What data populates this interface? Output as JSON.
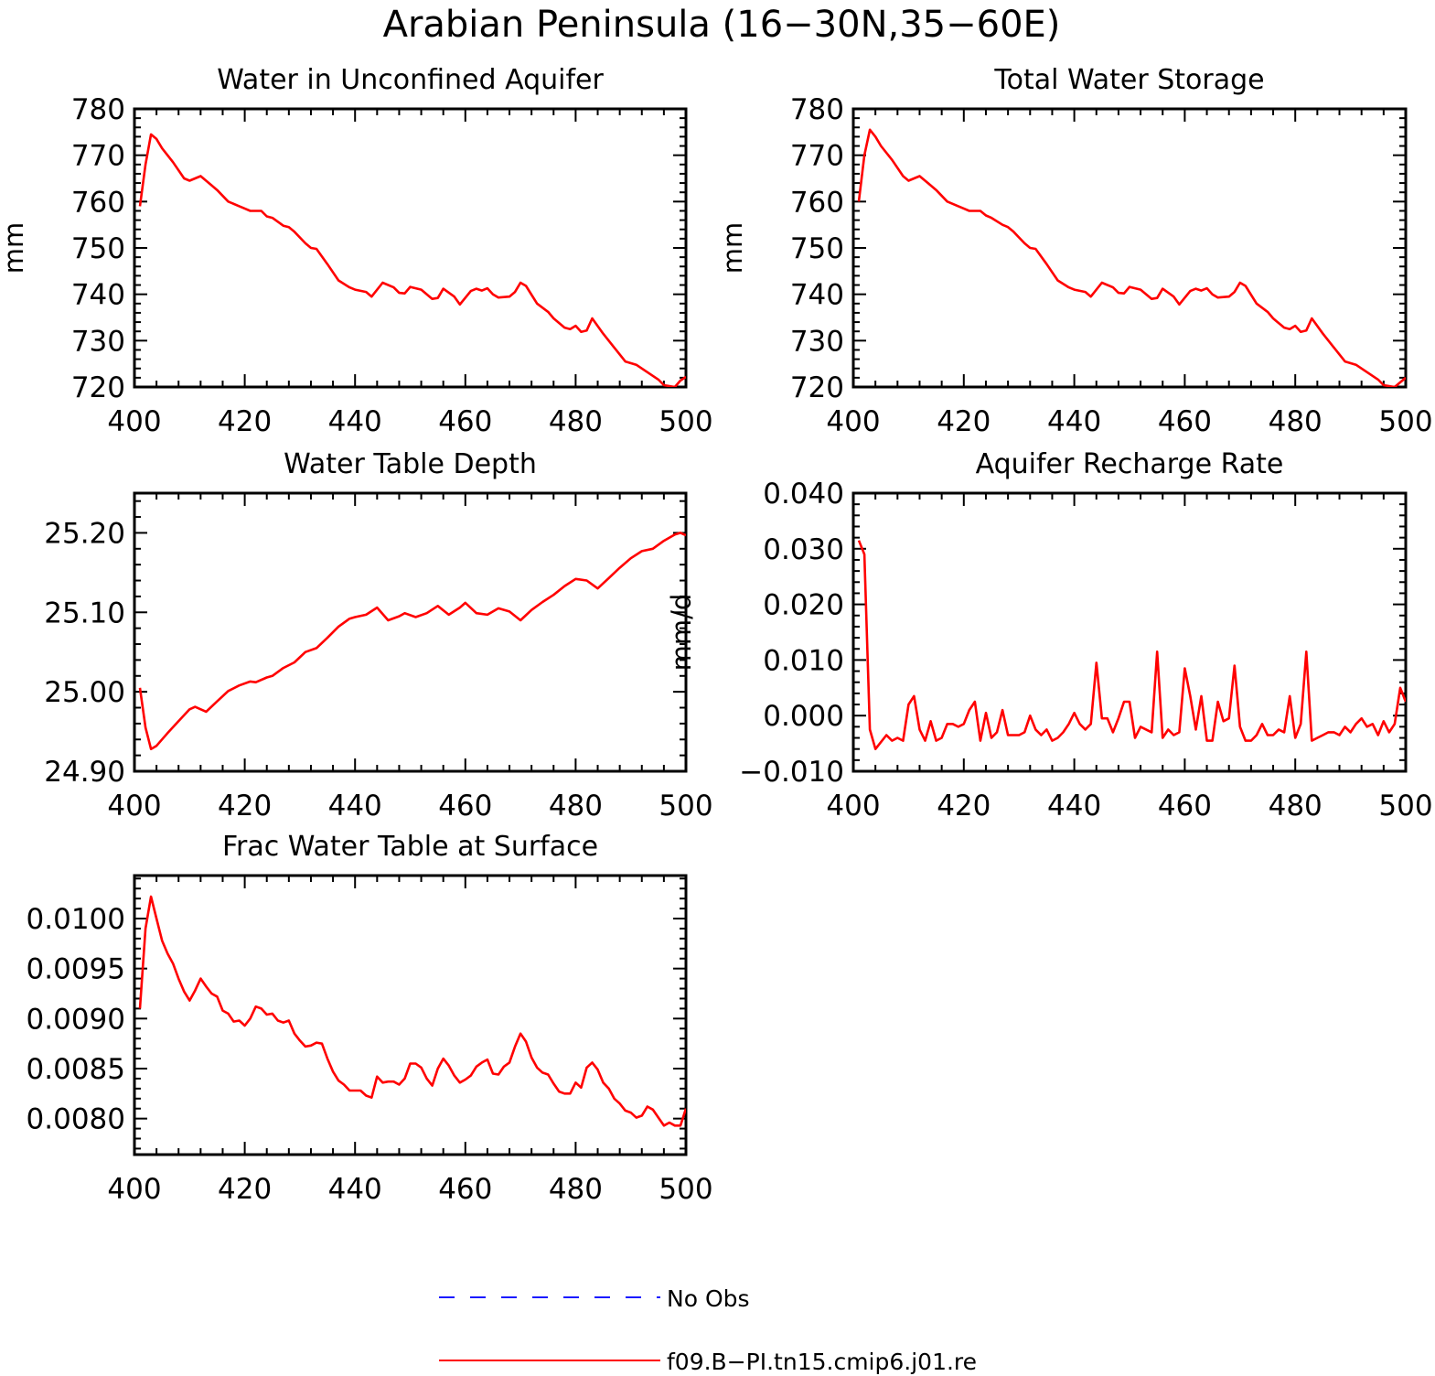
{
  "figure": {
    "title": "Arabian Peninsula (16−30N,35−60E)",
    "colors": {
      "model": "#ff0000",
      "obs": "#1a1aff",
      "axis": "#000000"
    },
    "legend": {
      "placement": "bottom-center",
      "entries": [
        {
          "label": "No Obs",
          "style": "dashed",
          "color": "#1a1aff"
        },
        {
          "label": "f09.B−PI.tn15.cmip6.j01.re",
          "style": "solid",
          "color": "#ff0000"
        }
      ]
    }
  },
  "chart_data": [
    {
      "id": "aquifer",
      "type": "line",
      "title": "Water in Unconfined Aquifer",
      "xlabel": "",
      "ylabel": "mm",
      "xlim": [
        400,
        500
      ],
      "ylim": [
        720,
        780
      ],
      "xticks": [
        400,
        420,
        440,
        460,
        480,
        500
      ],
      "xtick_labels": [
        "400",
        "420",
        "440",
        "460",
        "480",
        "500"
      ],
      "yticks": [
        720,
        730,
        740,
        750,
        760,
        770,
        780
      ],
      "ytick_labels": [
        "720",
        "730",
        "740",
        "750",
        "760",
        "770",
        "780"
      ],
      "grid": false,
      "series": [
        {
          "name": "f09.B−PI.tn15.cmip6.j01.re",
          "color": "#ff0000",
          "x": [
            401,
            402,
            403,
            404,
            405,
            407,
            409,
            410,
            411,
            412,
            414,
            415,
            417,
            419,
            420,
            421,
            423,
            424,
            425,
            427,
            428,
            429,
            431,
            432,
            433,
            435,
            437,
            439,
            440,
            442,
            443,
            445,
            447,
            448,
            449,
            450,
            452,
            454,
            455,
            456,
            458,
            459,
            461,
            462,
            463,
            464,
            465,
            466,
            468,
            469,
            470,
            471,
            473,
            475,
            476,
            478,
            479,
            480,
            481,
            482,
            483,
            485,
            487,
            489,
            491,
            493,
            495,
            496,
            498,
            499,
            500
          ],
          "y": [
            759,
            768,
            774.5,
            773.5,
            771.5,
            768.5,
            765,
            764.5,
            765,
            765.5,
            763.5,
            762.5,
            760,
            759,
            758.5,
            758,
            758,
            756.8,
            756.5,
            754.8,
            754.5,
            753.5,
            751,
            750,
            749.8,
            746.5,
            743,
            741.5,
            741,
            740.5,
            739.5,
            742.5,
            741.5,
            740.3,
            740.2,
            741.6,
            741,
            739,
            739.2,
            741.2,
            739.5,
            737.8,
            740.7,
            741.2,
            740.8,
            741.3,
            740,
            739.3,
            739.5,
            740.5,
            742.5,
            741.8,
            738,
            736.2,
            734.8,
            732.8,
            732.5,
            733.2,
            731.9,
            732.2,
            734.8,
            731.5,
            728.5,
            725.5,
            724.8,
            723.2,
            721.6,
            720.4,
            720,
            721.4,
            722.2
          ]
        }
      ]
    },
    {
      "id": "tws",
      "type": "line",
      "title": "Total Water Storage",
      "xlabel": "",
      "ylabel": "mm",
      "xlim": [
        400,
        500
      ],
      "ylim": [
        720,
        780
      ],
      "xticks": [
        400,
        420,
        440,
        460,
        480,
        500
      ],
      "xtick_labels": [
        "400",
        "420",
        "440",
        "460",
        "480",
        "500"
      ],
      "yticks": [
        720,
        730,
        740,
        750,
        760,
        770,
        780
      ],
      "ytick_labels": [
        "720",
        "730",
        "740",
        "750",
        "760",
        "770",
        "780"
      ],
      "grid": false,
      "series": [
        {
          "name": "f09.B−PI.tn15.cmip6.j01.re",
          "color": "#ff0000",
          "x": [
            401,
            402,
            403,
            404,
            405,
            407,
            409,
            410,
            411,
            412,
            414,
            415,
            417,
            419,
            420,
            421,
            423,
            424,
            425,
            427,
            428,
            429,
            431,
            432,
            433,
            435,
            437,
            439,
            440,
            442,
            443,
            445,
            447,
            448,
            449,
            450,
            452,
            454,
            455,
            456,
            458,
            459,
            461,
            462,
            463,
            464,
            465,
            466,
            468,
            469,
            470,
            471,
            473,
            475,
            476,
            478,
            479,
            480,
            481,
            482,
            483,
            485,
            487,
            489,
            491,
            493,
            495,
            496,
            498,
            499,
            500
          ],
          "y": [
            760,
            770,
            775.5,
            774,
            772,
            769,
            765.5,
            764.5,
            765,
            765.5,
            763.5,
            762.5,
            760,
            759,
            758.5,
            758,
            758,
            757,
            756.5,
            755,
            754.5,
            753.5,
            751,
            750,
            749.8,
            746.5,
            743,
            741.5,
            741,
            740.5,
            739.5,
            742.5,
            741.5,
            740.3,
            740.2,
            741.6,
            741,
            739,
            739.2,
            741.2,
            739.5,
            737.8,
            740.7,
            741.2,
            740.8,
            741.3,
            740,
            739.3,
            739.5,
            740.5,
            742.5,
            741.8,
            738,
            736.2,
            734.8,
            732.8,
            732.5,
            733.2,
            731.9,
            732.2,
            734.8,
            731.5,
            728.5,
            725.5,
            724.8,
            723.2,
            721.6,
            720.4,
            720,
            721,
            722
          ]
        }
      ]
    },
    {
      "id": "wtd",
      "type": "line",
      "title": "Water Table Depth",
      "xlabel": "",
      "ylabel": "",
      "xlim": [
        400,
        500
      ],
      "ylim": [
        24.9,
        25.25
      ],
      "xticks": [
        400,
        420,
        440,
        460,
        480,
        500
      ],
      "xtick_labels": [
        "400",
        "420",
        "440",
        "460",
        "480",
        "500"
      ],
      "yticks": [
        24.9,
        25.0,
        25.1,
        25.2
      ],
      "ytick_labels": [
        "24.90",
        "25.00",
        "25.10",
        "25.20"
      ],
      "grid": false,
      "series": [
        {
          "name": "f09.B−PI.tn15.cmip6.j01.re",
          "color": "#ff0000",
          "x": [
            401,
            402,
            403,
            404,
            406,
            408,
            410,
            411,
            413,
            415,
            417,
            419,
            421,
            422,
            424,
            425,
            427,
            429,
            431,
            433,
            435,
            437,
            439,
            440,
            442,
            444,
            446,
            448,
            449,
            451,
            453,
            455,
            457,
            459,
            460,
            462,
            464,
            466,
            468,
            470,
            472,
            474,
            476,
            478,
            480,
            482,
            484,
            486,
            488,
            490,
            492,
            494,
            496,
            498,
            499,
            500
          ],
          "y": [
            25.005,
            24.955,
            24.928,
            24.932,
            24.948,
            24.963,
            24.978,
            24.981,
            24.975,
            24.988,
            25.001,
            25.008,
            25.013,
            25.012,
            25.018,
            25.02,
            25.03,
            25.037,
            25.05,
            25.055,
            25.068,
            25.082,
            25.092,
            25.094,
            25.097,
            25.106,
            25.09,
            25.095,
            25.099,
            25.094,
            25.099,
            25.108,
            25.097,
            25.106,
            25.112,
            25.099,
            25.097,
            25.105,
            25.101,
            25.09,
            25.103,
            25.113,
            25.122,
            25.133,
            25.142,
            25.14,
            25.13,
            25.143,
            25.156,
            25.168,
            25.177,
            25.18,
            25.19,
            25.198,
            25.2,
            25.197
          ]
        }
      ]
    },
    {
      "id": "recharge",
      "type": "line",
      "title": "Aquifer Recharge Rate",
      "xlabel": "",
      "ylabel": "mm/d",
      "xlim": [
        400,
        500
      ],
      "ylim": [
        -0.01,
        0.04
      ],
      "xticks": [
        400,
        420,
        440,
        460,
        480,
        500
      ],
      "xtick_labels": [
        "400",
        "420",
        "440",
        "460",
        "480",
        "500"
      ],
      "yticks": [
        -0.01,
        0.0,
        0.01,
        0.02,
        0.03,
        0.04
      ],
      "ytick_labels": [
        "−0.010",
        "0.000",
        "0.010",
        "0.020",
        "0.030",
        "0.040"
      ],
      "grid": false,
      "series": [
        {
          "name": "f09.B−PI.tn15.cmip6.j01.re",
          "color": "#ff0000",
          "x": [
            401,
            402,
            403,
            404,
            406,
            407,
            408,
            409,
            410,
            411,
            412,
            413,
            414,
            415,
            416,
            417,
            418,
            419,
            420,
            421,
            422,
            423,
            424,
            425,
            426,
            427,
            428,
            429,
            430,
            431,
            432,
            433,
            434,
            435,
            436,
            437,
            438,
            439,
            440,
            441,
            442,
            443,
            444,
            445,
            446,
            447,
            448,
            449,
            450,
            451,
            452,
            453,
            454,
            455,
            456,
            457,
            458,
            459,
            460,
            461,
            462,
            463,
            464,
            465,
            466,
            467,
            468,
            469,
            470,
            471,
            472,
            473,
            474,
            475,
            476,
            477,
            478,
            479,
            480,
            481,
            482,
            483,
            484,
            485,
            486,
            487,
            488,
            489,
            490,
            491,
            492,
            493,
            494,
            495,
            496,
            497,
            498,
            499,
            500
          ],
          "y": [
            0.0315,
            0.029,
            -0.0025,
            -0.006,
            -0.0035,
            -0.0045,
            -0.004,
            -0.0045,
            0.002,
            0.0035,
            -0.0025,
            -0.0045,
            -0.001,
            -0.0045,
            -0.004,
            -0.0015,
            -0.0015,
            -0.002,
            -0.0015,
            0.001,
            0.0025,
            -0.0045,
            0.0005,
            -0.004,
            -0.003,
            0.001,
            -0.0035,
            -0.0035,
            -0.0035,
            -0.003,
            0.0,
            -0.0025,
            -0.0035,
            -0.0025,
            -0.0045,
            -0.004,
            -0.003,
            -0.0015,
            0.0005,
            -0.0015,
            -0.0025,
            -0.0015,
            0.0095,
            -0.0005,
            -0.0005,
            -0.003,
            -0.0005,
            0.0025,
            0.0025,
            -0.004,
            -0.002,
            -0.0025,
            -0.003,
            0.0115,
            -0.004,
            -0.0025,
            -0.0035,
            -0.003,
            0.0085,
            0.0035,
            -0.0025,
            0.0035,
            -0.0045,
            -0.0045,
            0.0025,
            -0.001,
            -0.0005,
            0.009,
            -0.002,
            -0.0045,
            -0.0045,
            -0.0035,
            -0.0015,
            -0.0035,
            -0.0035,
            -0.0025,
            -0.003,
            0.0035,
            -0.004,
            -0.0015,
            0.0115,
            -0.0045,
            -0.004,
            -0.0035,
            -0.003,
            -0.003,
            -0.0035,
            -0.002,
            -0.003,
            -0.0015,
            -0.0005,
            -0.002,
            -0.0015,
            -0.0035,
            -0.001,
            -0.003,
            -0.0015,
            0.005,
            0.0025
          ]
        }
      ]
    },
    {
      "id": "frac",
      "type": "line",
      "title": "Frac Water Table at Surface",
      "xlabel": "",
      "ylabel": "",
      "xlim": [
        400,
        500
      ],
      "ylim": [
        0.00764,
        0.01043
      ],
      "xticks": [
        400,
        420,
        440,
        460,
        480,
        500
      ],
      "xtick_labels": [
        "400",
        "420",
        "440",
        "460",
        "480",
        "500"
      ],
      "yticks": [
        0.008,
        0.0085,
        0.009,
        0.0095,
        0.01
      ],
      "ytick_labels": [
        "0.0080",
        "0.0085",
        "0.0090",
        "0.0095",
        "0.0100"
      ],
      "grid": false,
      "series": [
        {
          "name": "f09.B−PI.tn15.cmip6.j01.re",
          "color": "#ff0000",
          "x": [
            401,
            402,
            403,
            404,
            405,
            406,
            407,
            408,
            409,
            410,
            411,
            412,
            413,
            414,
            415,
            416,
            417,
            418,
            419,
            420,
            421,
            422,
            423,
            424,
            425,
            426,
            427,
            428,
            429,
            430,
            431,
            432,
            433,
            434,
            435,
            436,
            437,
            438,
            439,
            440,
            441,
            442,
            443,
            444,
            445,
            446,
            447,
            448,
            449,
            450,
            451,
            452,
            453,
            454,
            455,
            456,
            457,
            458,
            459,
            460,
            461,
            462,
            463,
            464,
            465,
            466,
            467,
            468,
            469,
            470,
            471,
            472,
            473,
            474,
            475,
            476,
            477,
            478,
            479,
            480,
            481,
            482,
            483,
            484,
            485,
            486,
            487,
            488,
            489,
            490,
            491,
            492,
            493,
            494,
            495,
            496,
            497,
            498,
            499,
            500
          ],
          "y": [
            0.0091,
            0.0099,
            0.01022,
            0.01,
            0.00978,
            0.00965,
            0.00955,
            0.0094,
            0.00927,
            0.00918,
            0.00928,
            0.0094,
            0.00932,
            0.00925,
            0.00922,
            0.00908,
            0.00905,
            0.00897,
            0.00898,
            0.00893,
            0.009,
            0.00912,
            0.0091,
            0.00904,
            0.00905,
            0.00898,
            0.00896,
            0.00898,
            0.00885,
            0.00878,
            0.00872,
            0.00873,
            0.00876,
            0.00875,
            0.0086,
            0.00847,
            0.00838,
            0.00834,
            0.00828,
            0.00828,
            0.00828,
            0.00823,
            0.00821,
            0.00842,
            0.00836,
            0.00837,
            0.00837,
            0.00834,
            0.0084,
            0.00855,
            0.00855,
            0.00851,
            0.0084,
            0.00833,
            0.0085,
            0.0086,
            0.00853,
            0.00843,
            0.00836,
            0.00839,
            0.00843,
            0.00852,
            0.00856,
            0.00859,
            0.00845,
            0.00844,
            0.00852,
            0.00856,
            0.00872,
            0.00885,
            0.00877,
            0.00861,
            0.00851,
            0.00846,
            0.00844,
            0.00835,
            0.00827,
            0.00825,
            0.00825,
            0.00836,
            0.00831,
            0.00851,
            0.00856,
            0.00849,
            0.00836,
            0.0083,
            0.0082,
            0.00815,
            0.00808,
            0.00806,
            0.00801,
            0.00803,
            0.00812,
            0.00809,
            0.00801,
            0.00793,
            0.00796,
            0.00793,
            0.00793,
            0.0081
          ]
        }
      ]
    }
  ]
}
